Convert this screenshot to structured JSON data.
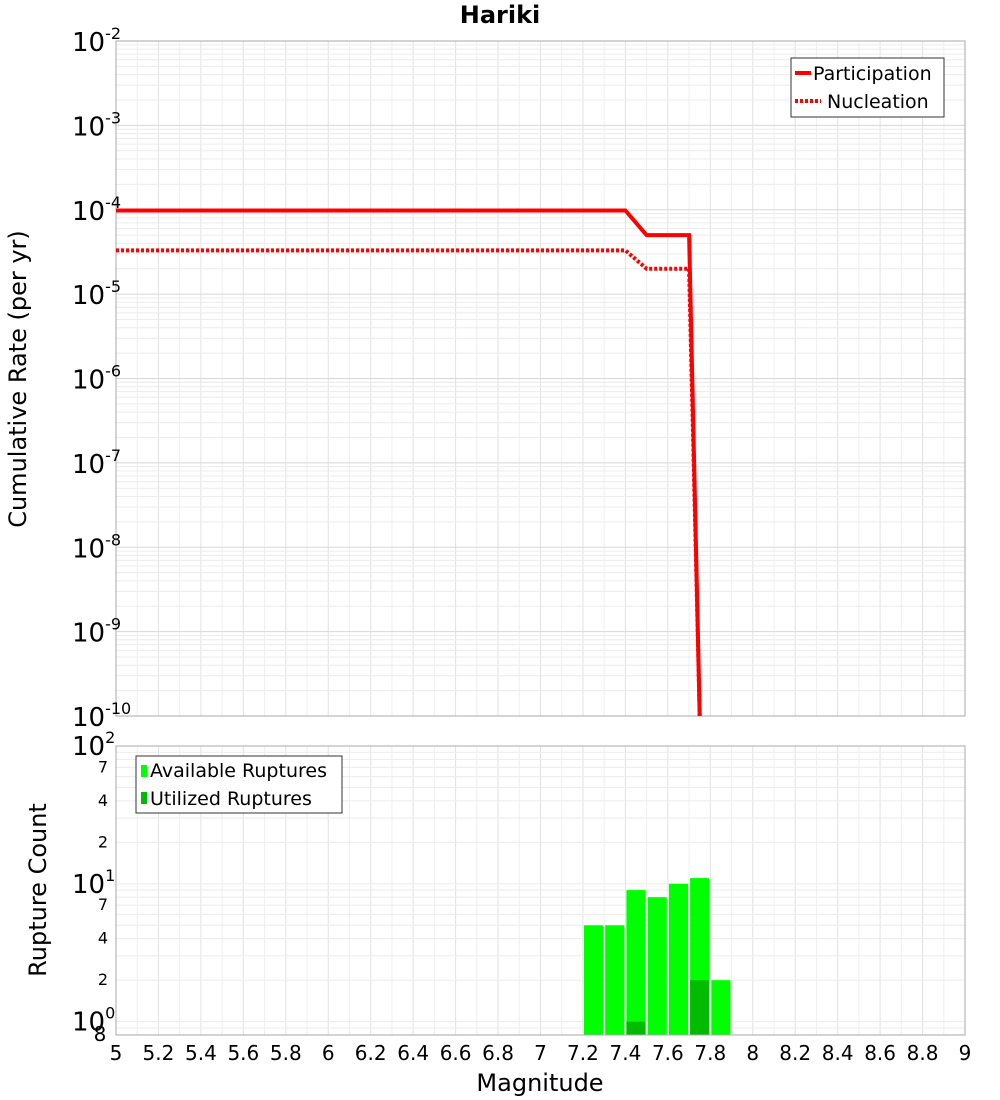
{
  "chart_data": [
    {
      "type": "line",
      "title": "Hariki",
      "ylabel": "Cumulative Rate (per yr)",
      "xlabel": "",
      "y_scale": "log",
      "xlim": [
        5,
        9
      ],
      "ylim": [
        1e-10,
        0.01
      ],
      "y_tick_labels": [
        {
          "base": "10",
          "exp": "-2"
        },
        {
          "base": "10",
          "exp": "-3"
        },
        {
          "base": "10",
          "exp": "-4"
        },
        {
          "base": "10",
          "exp": "-5"
        },
        {
          "base": "10",
          "exp": "-6"
        },
        {
          "base": "10",
          "exp": "-7"
        },
        {
          "base": "10",
          "exp": "-8"
        },
        {
          "base": "10",
          "exp": "-9"
        },
        {
          "base": "10",
          "exp": "-10"
        }
      ],
      "legend_position": "top-right",
      "grid": true,
      "series": [
        {
          "name": "Participation",
          "style": "solid",
          "color": "#ff0000",
          "points": [
            [
              5.0,
              9.8e-05
            ],
            [
              7.4,
              9.8e-05
            ],
            [
              7.5,
              5e-05
            ],
            [
              7.7,
              5e-05
            ],
            [
              7.75,
              1e-10
            ]
          ]
        },
        {
          "name": "Nucleation",
          "style": "dotted",
          "color": "#ff0000",
          "points": [
            [
              5.0,
              3.3e-05
            ],
            [
              7.4,
              3.3e-05
            ],
            [
              7.5,
              2e-05
            ],
            [
              7.7,
              2e-05
            ],
            [
              7.75,
              1e-10
            ]
          ]
        }
      ]
    },
    {
      "type": "bar",
      "title": "",
      "ylabel": "Rupture Count",
      "xlabel": "Magnitude",
      "y_scale": "log",
      "xlim": [
        5,
        9
      ],
      "ylim": [
        0.8,
        100
      ],
      "x_ticks": [
        "5",
        "5.2",
        "5.4",
        "5.6",
        "5.8",
        "6",
        "6.2",
        "6.4",
        "6.6",
        "6.8",
        "7",
        "7.2",
        "7.4",
        "7.6",
        "7.8",
        "8",
        "8.2",
        "8.4",
        "8.6",
        "8.8",
        "9"
      ],
      "y_major_ticks": [
        {
          "value": 100,
          "base": "10",
          "exp": "2"
        },
        {
          "value": 10,
          "base": "10",
          "exp": "1"
        },
        {
          "value": 1,
          "base": "10",
          "exp": "0"
        }
      ],
      "y_minor_ticks": [
        {
          "value": 70,
          "label": "7"
        },
        {
          "value": 40,
          "label": "4"
        },
        {
          "value": 20,
          "label": "2"
        },
        {
          "value": 7,
          "label": "7"
        },
        {
          "value": 4,
          "label": "4"
        },
        {
          "value": 2,
          "label": "2"
        },
        {
          "value": 0.8,
          "label": "8"
        }
      ],
      "legend_position": "top-left",
      "grid": true,
      "bar_width": 0.1,
      "series": [
        {
          "name": "Available Ruptures",
          "color": "#00ff00",
          "bars": [
            [
              7.25,
              5
            ],
            [
              7.35,
              5
            ],
            [
              7.45,
              9
            ],
            [
              7.55,
              8
            ],
            [
              7.65,
              10
            ],
            [
              7.75,
              11
            ],
            [
              7.85,
              2
            ]
          ]
        },
        {
          "name": "Utilized Ruptures",
          "color": "#00bb00",
          "bars": [
            [
              7.45,
              1
            ],
            [
              7.75,
              2
            ]
          ]
        }
      ]
    }
  ]
}
